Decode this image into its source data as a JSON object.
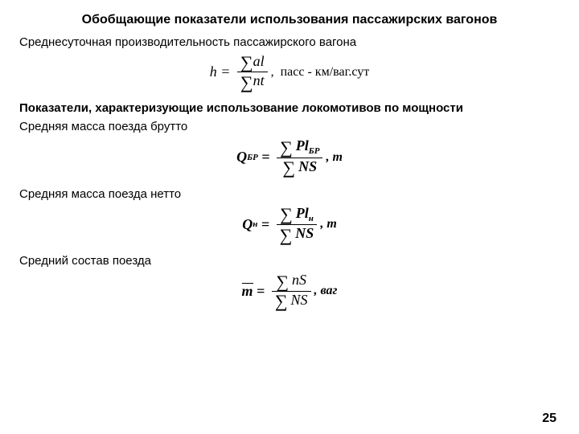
{
  "page_number": "25",
  "colors": {
    "text": "#000000",
    "bg": "#ffffff"
  },
  "fonts": {
    "body": "Arial",
    "math": "Times New Roman"
  },
  "sections": {
    "s1": {
      "title": "Обобщающие показатели использования пассажирских вагонов",
      "p1": "Среднесуточная производительность пассажирского вагона",
      "f1": {
        "lhs": "h",
        "num_sym": "al",
        "den_sym": "nt",
        "unit_text": "пасс - км/ваг.сут"
      }
    },
    "s2": {
      "title": "Показатели,  характеризующие  использование локомотивов  по  мощности",
      "p1": "Средняя масса поезда брутто",
      "f2": {
        "lhs": "Q",
        "lhs_sub": "БР",
        "num_sym_a": "Pl",
        "num_sub": "БР",
        "den_sym": "NS",
        "unit_text": "т"
      },
      "p2": "Средняя масса поезда нетто",
      "f3": {
        "lhs": "Q",
        "lhs_sub": "н",
        "num_sym_a": "Pl",
        "num_sub": "н",
        "den_sym": "NS",
        "unit_text": "т"
      },
      "p3": "Средний состав поезда",
      "f4": {
        "lhs": "m",
        "num_sym": "nS",
        "den_sym": "NS",
        "unit_text": "ваг"
      }
    }
  }
}
